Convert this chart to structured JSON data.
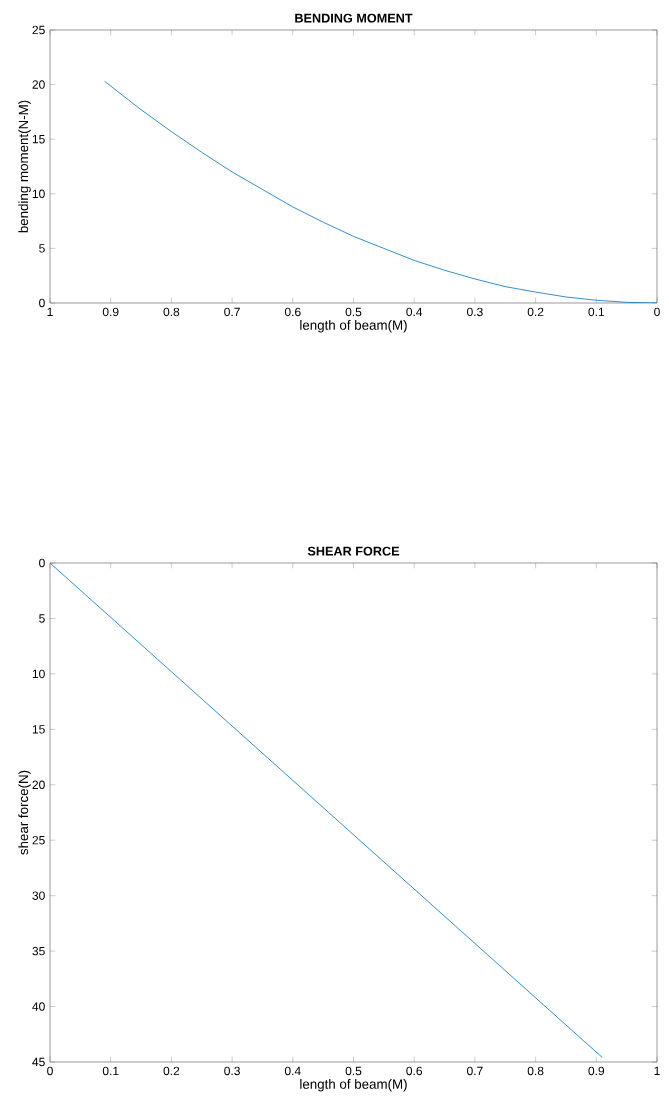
{
  "chart_data": [
    {
      "type": "line",
      "title": "BENDING MOMENT",
      "xlabel": "length of beam(M)",
      "ylabel": "bending moment(N-M)",
      "color": "#0072bd",
      "x": [
        0.91,
        0.85,
        0.8,
        0.75,
        0.7,
        0.65,
        0.6,
        0.55,
        0.5,
        0.45,
        0.4,
        0.35,
        0.3,
        0.25,
        0.2,
        0.15,
        0.1,
        0.05,
        0
      ],
      "values": [
        20.3,
        17.7,
        15.7,
        13.8,
        12.0,
        10.4,
        8.8,
        7.4,
        6.1,
        5.0,
        3.9,
        3.0,
        2.2,
        1.5,
        1.0,
        0.55,
        0.25,
        0.06,
        0
      ],
      "xlim": [
        1,
        0
      ],
      "ylim": [
        0,
        25
      ],
      "xticks": [
        1,
        0.9,
        0.8,
        0.7,
        0.6,
        0.5,
        0.4,
        0.3,
        0.2,
        0.1,
        0
      ],
      "yticks": [
        0,
        5,
        10,
        15,
        20,
        25
      ]
    },
    {
      "type": "line",
      "title": "SHEAR FORCE",
      "xlabel": "length of beam(M)",
      "ylabel": "shear force(N)",
      "color": "#0072bd",
      "x": [
        0,
        0.91
      ],
      "values": [
        0,
        44.6
      ],
      "xlim": [
        0,
        1
      ],
      "ylim": [
        45,
        0
      ],
      "xticks": [
        0,
        0.1,
        0.2,
        0.3,
        0.4,
        0.5,
        0.6,
        0.7,
        0.8,
        0.9,
        1
      ],
      "yticks": [
        0,
        5,
        10,
        15,
        20,
        25,
        30,
        35,
        40,
        45
      ]
    }
  ]
}
